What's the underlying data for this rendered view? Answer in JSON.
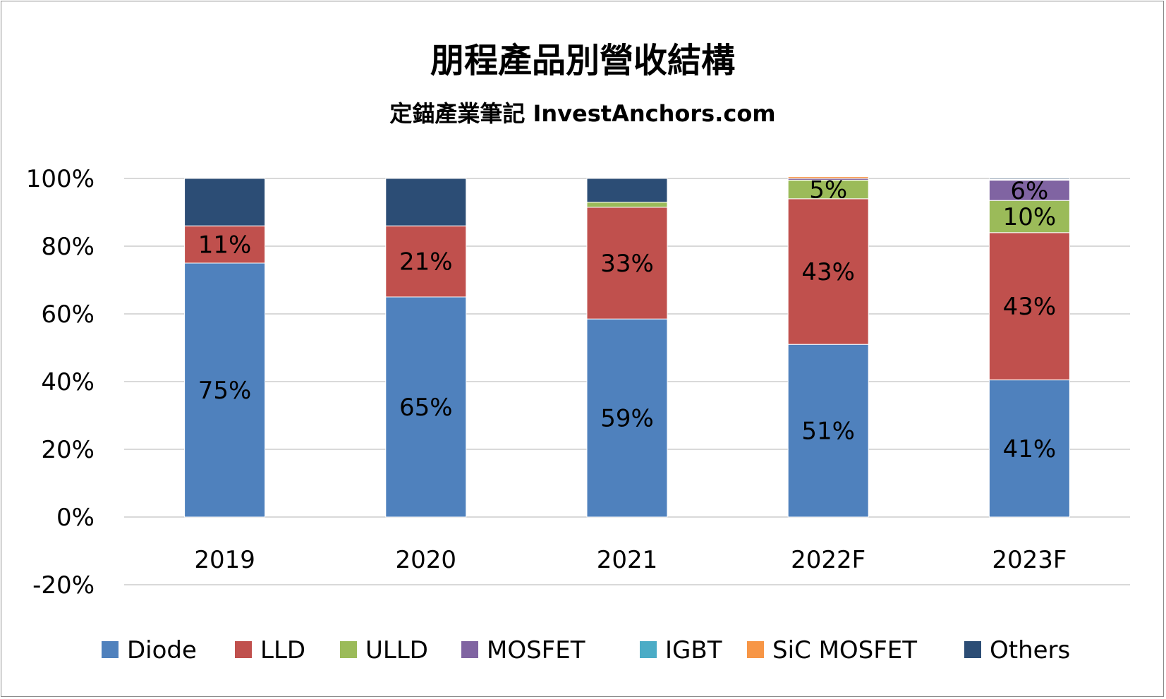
{
  "chart_data": {
    "type": "bar",
    "stacked": true,
    "title": "朋程產品別營收結構",
    "subtitle": "定錨產業筆記 InvestAnchors.com",
    "xlabel": "",
    "ylabel": "",
    "categories": [
      "2019",
      "2020",
      "2021",
      "2022F",
      "2023F"
    ],
    "ylim": [
      -20,
      100
    ],
    "yticks": [
      "100%",
      "80%",
      "60%",
      "40%",
      "20%",
      "0%",
      "-20%"
    ],
    "ytick_values": [
      100,
      80,
      60,
      40,
      20,
      0,
      -20
    ],
    "grid": true,
    "legend_position": "bottom",
    "series": [
      {
        "name": "Diode",
        "color": "#4f81bd",
        "values": [
          75,
          65,
          58.5,
          51,
          40.5
        ],
        "labels": [
          "75%",
          "65%",
          "59%",
          "51%",
          "41%"
        ]
      },
      {
        "name": "LLD",
        "color": "#c0504d",
        "values": [
          11,
          21,
          33,
          43,
          43.5
        ],
        "labels": [
          "11%",
          "21%",
          "33%",
          "43%",
          "43%"
        ]
      },
      {
        "name": "ULLD",
        "color": "#9bbb59",
        "values": [
          0,
          0,
          1.5,
          5.5,
          9.5
        ],
        "labels": [
          "",
          "",
          "",
          "5%",
          "10%"
        ]
      },
      {
        "name": "MOSFET",
        "color": "#8064a2",
        "values": [
          0,
          0,
          0,
          0.5,
          6
        ],
        "labels": [
          "",
          "",
          "",
          "",
          "6%"
        ]
      },
      {
        "name": "IGBT",
        "color": "#4bacc6",
        "values": [
          0,
          0,
          0,
          0,
          0
        ],
        "labels": [
          "",
          "",
          "",
          "",
          ""
        ]
      },
      {
        "name": "SiC MOSFET",
        "color": "#f79646",
        "values": [
          0,
          0,
          0,
          0.5,
          0.2
        ],
        "labels": [
          "",
          "",
          "",
          "",
          ""
        ]
      },
      {
        "name": "Others",
        "color": "#2c4d75",
        "values": [
          14,
          14,
          7,
          0,
          0.3
        ],
        "labels": [
          "",
          "",
          "",
          "",
          ""
        ]
      }
    ]
  }
}
